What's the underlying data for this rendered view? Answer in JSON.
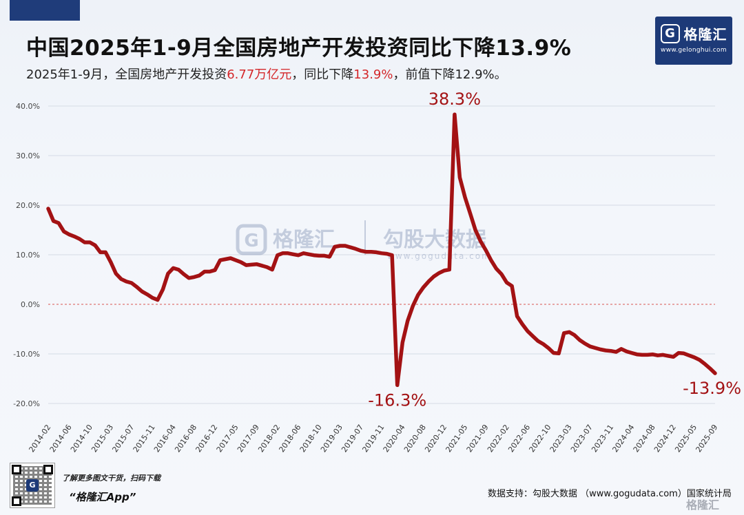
{
  "header": {
    "title": "中国2025年1-9月全国房地产开发投资同比下降13.9%",
    "subtitle_parts": [
      "2025年1-9月，全国房地产开发投资",
      "6.77万亿元",
      "，同比下降",
      "13.9%",
      "，前值下降12.9%。"
    ]
  },
  "logo": {
    "mark": "G",
    "name": "格隆汇",
    "url": "www.gelonghui.com"
  },
  "watermark": {
    "brand": "格隆汇",
    "partner": "勾股大数据",
    "url": "www.gogudata.com"
  },
  "footer": {
    "promo_line1": "了解更多图文干货，扫码下载",
    "promo_line2": "“格隆汇App”",
    "source": "数据支持：勾股大数据 （www.gogudata.com）国家统计局",
    "corner_watermark": "格隆汇"
  },
  "colors": {
    "line": "#a31214",
    "annotation": "#a31214",
    "accent_blue": "#1d3a78",
    "zero_line": "#d9534f"
  },
  "chart_data": {
    "type": "line",
    "series": [
      {
        "values": [
          19.3,
          16.8,
          16.4,
          14.7,
          14.1,
          13.7,
          13.2,
          12.5,
          12.5,
          11.9,
          10.5,
          10.5,
          8.5,
          6.2,
          5.1,
          4.6,
          4.3,
          3.5,
          2.6,
          2.0,
          1.3,
          0.9,
          3.0,
          6.2,
          7.3,
          7.0,
          6.1,
          5.3,
          5.5,
          5.8,
          6.6,
          6.6,
          6.9,
          8.9,
          9.1,
          9.3,
          8.9,
          8.5,
          7.9,
          8.0,
          8.1,
          7.8,
          7.5,
          7.0,
          9.9,
          10.3,
          10.3,
          10.1,
          9.9,
          10.3,
          10.1,
          9.9,
          9.8,
          9.8,
          9.6,
          11.6,
          11.8,
          11.8,
          11.5,
          11.2,
          10.8,
          10.6,
          10.6,
          10.5,
          10.3,
          10.2,
          9.9,
          -16.3,
          -7.7,
          -3.3,
          -0.3,
          1.9,
          3.4,
          4.6,
          5.6,
          6.3,
          6.8,
          7.0,
          38.3,
          25.6,
          21.6,
          18.3,
          15.0,
          12.7,
          10.9,
          8.9,
          7.2,
          6.1,
          4.4,
          3.7,
          -2.4,
          -4.0,
          -5.4,
          -6.4,
          -7.4,
          -8.0,
          -8.8,
          -9.8,
          -9.9,
          -5.8,
          -5.6,
          -6.2,
          -7.2,
          -7.9,
          -8.5,
          -8.8,
          -9.1,
          -9.3,
          -9.4,
          -9.6,
          -9.0,
          -9.5,
          -9.8,
          -10.1,
          -10.2,
          -10.2,
          -10.1,
          -10.3,
          -10.2,
          -10.4,
          -10.6,
          -9.8,
          -9.9,
          -10.3,
          -10.7,
          -11.2,
          -12.0,
          -12.9,
          -13.9
        ]
      }
    ],
    "tick_labels": [
      "2014-02",
      "2014-06",
      "2014-10",
      "2015-03",
      "2015-07",
      "2015-11",
      "2016-04",
      "2016-08",
      "2016-12",
      "2017-05",
      "2017-09",
      "2018-02",
      "2018-06",
      "2018-10",
      "2019-03",
      "2019-07",
      "2019-11",
      "2020-04",
      "2020-08",
      "2020-12",
      "2021-05",
      "2021-09",
      "2022-02",
      "2022-06",
      "2022-10",
      "2023-03",
      "2023-07",
      "2023-11",
      "2024-04",
      "2024-08",
      "2024-12",
      "2025-05",
      "2025-09"
    ],
    "y_ticks": [
      "40.0%",
      "30.0%",
      "20.0%",
      "10.0%",
      "0.0%",
      "-10.0%",
      "-20.0%"
    ],
    "y_tick_values": [
      40,
      30,
      20,
      10,
      0,
      -10,
      -20
    ],
    "ylim": [
      -22,
      42
    ],
    "grid": true,
    "legend": false,
    "annotations": [
      {
        "text": "38.3%",
        "index": 78,
        "value": 38.3,
        "side": "top"
      },
      {
        "text": "-16.3%",
        "index": 67,
        "value": -16.3,
        "side": "bottom"
      },
      {
        "text": "-13.9%",
        "index": 129,
        "value": -13.9,
        "side": "bottom"
      }
    ]
  }
}
